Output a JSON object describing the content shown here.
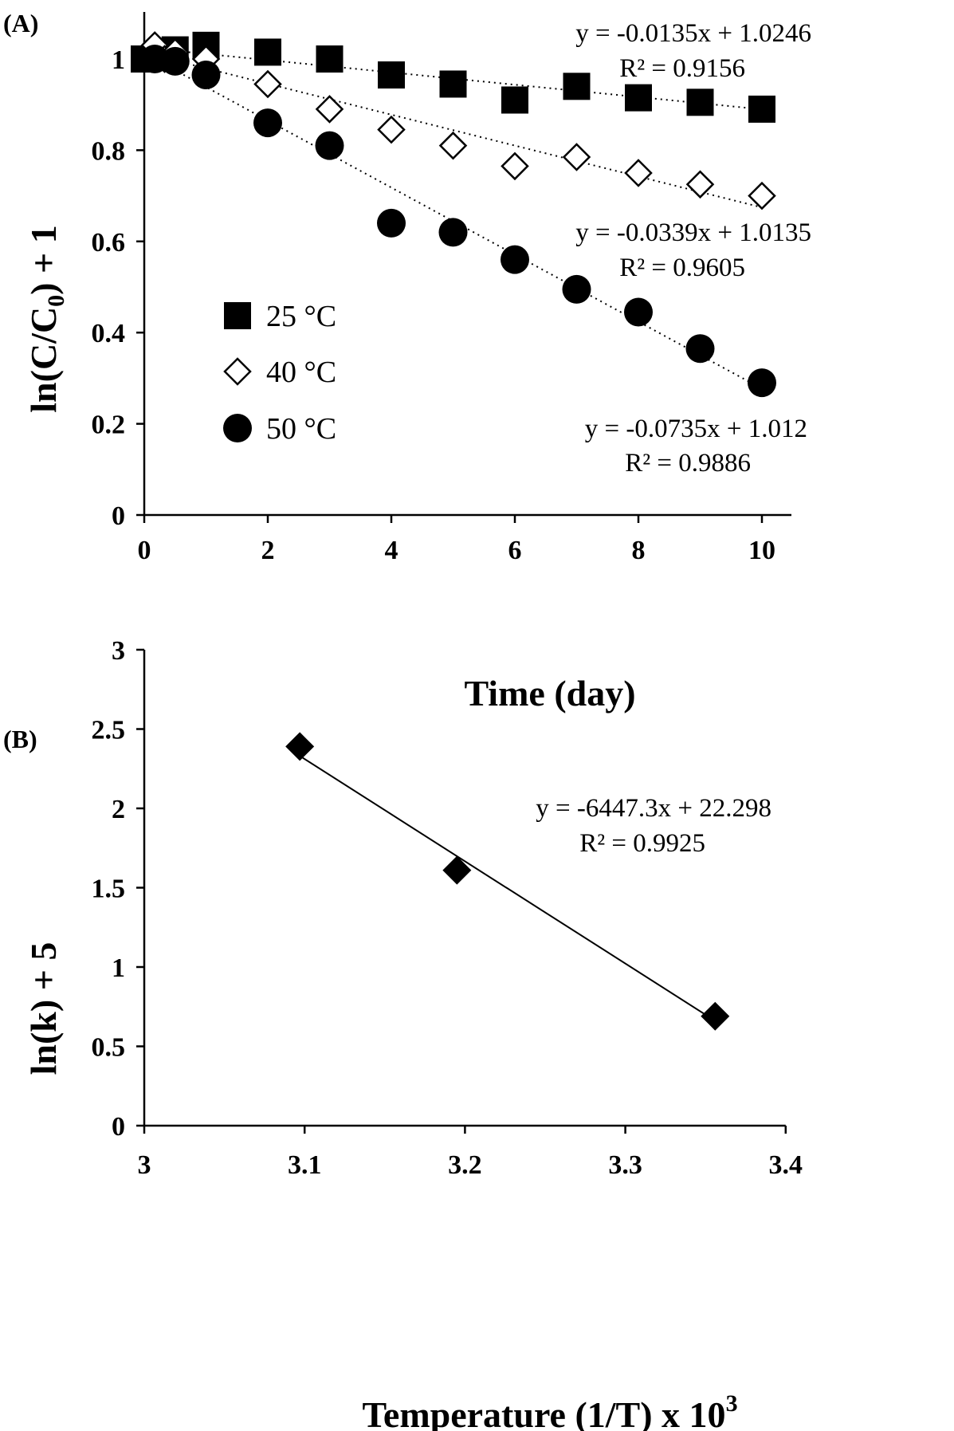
{
  "chart_data": [
    {
      "type": "scatter",
      "panel_label": "(A)",
      "xlabel": "Time (day)",
      "ylabel": "ln(C/C0) + 1",
      "xlim": [
        0,
        10.5
      ],
      "ylim": [
        0,
        1.1
      ],
      "x_ticks": [
        "0",
        "2",
        "4",
        "6",
        "8",
        "10"
      ],
      "y_ticks": [
        "0",
        "0.2",
        "0.4",
        "0.6",
        "0.8",
        "1"
      ],
      "grid": false,
      "legend_position": "center-left",
      "series": [
        {
          "name": "25 °C",
          "marker": "square-filled",
          "x": [
            0,
            0.25,
            0.5,
            1,
            2,
            3,
            4,
            5,
            6,
            7,
            8,
            9,
            10
          ],
          "y": [
            1.0,
            1.01,
            1.02,
            1.03,
            1.015,
            1.0,
            0.965,
            0.945,
            0.91,
            0.94,
            0.915,
            0.905,
            0.89
          ],
          "trendline": {
            "slope": -0.0135,
            "intercept": 1.0246
          },
          "equation": "y = -0.0135x + 1.0246",
          "r2": "R² = 0.9156"
        },
        {
          "name": "40 °C",
          "marker": "diamond-open",
          "x": [
            0.17,
            0.33,
            0.5,
            1,
            2,
            3,
            4,
            5,
            6,
            7,
            8,
            9,
            10
          ],
          "y": [
            1.03,
            1.0,
            1.015,
            1.0,
            0.945,
            0.89,
            0.845,
            0.81,
            0.765,
            0.785,
            0.75,
            0.725,
            0.7
          ],
          "trendline": {
            "slope": -0.0339,
            "intercept": 1.0135
          },
          "equation": "y = -0.0339x + 1.0135",
          "r2": "R² = 0.9605"
        },
        {
          "name": "50 °C",
          "marker": "circle-filled",
          "x": [
            0.17,
            0.5,
            1,
            2,
            3,
            4,
            5,
            6,
            7,
            8,
            9,
            10
          ],
          "y": [
            1.0,
            0.995,
            0.965,
            0.86,
            0.81,
            0.64,
            0.62,
            0.56,
            0.495,
            0.445,
            0.365,
            0.29
          ],
          "trendline": {
            "slope": -0.0735,
            "intercept": 1.012
          },
          "equation": "y = -0.0735x + 1.012",
          "r2": "R² = 0.9886"
        }
      ]
    },
    {
      "type": "scatter",
      "panel_label": "(B)",
      "xlabel": "Temperature (1/T) x 10",
      "xlabel_superscript": "3",
      "ylabel": "ln(k) + 5",
      "xlim": [
        3,
        3.4
      ],
      "ylim": [
        0,
        3
      ],
      "x_ticks": [
        "3",
        "3.1",
        "3.2",
        "3.3",
        "3.4"
      ],
      "y_ticks": [
        "0",
        "0.5",
        "1",
        "1.5",
        "2",
        "2.5",
        "3"
      ],
      "grid": false,
      "series": [
        {
          "marker": "diamond-filled",
          "x": [
            3.097,
            3.195,
            3.356
          ],
          "y": [
            2.39,
            1.61,
            0.69
          ],
          "trendline": {
            "slope": -6.4473,
            "intercept": 22.298
          },
          "equation": "y = -6447.3x + 22.298",
          "r2": "R² = 0.9925"
        }
      ]
    }
  ]
}
